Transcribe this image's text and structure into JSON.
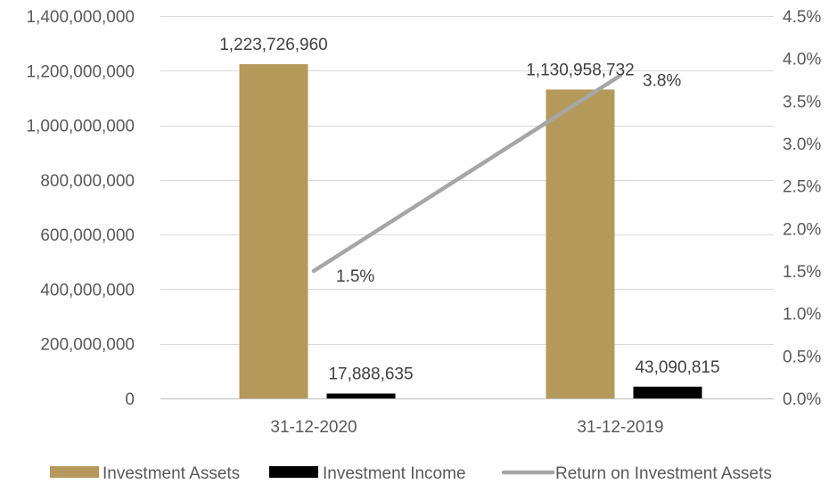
{
  "chart_data": {
    "type": "bar",
    "categories": [
      "31-12-2020",
      "31-12-2019"
    ],
    "series": [
      {
        "name": "Investment Assets",
        "kind": "bar",
        "axis": "left",
        "color": "#b5995a",
        "values": [
          1223726960,
          1130958732
        ],
        "labels": [
          "1,223,726,960",
          "1,130,958,732"
        ]
      },
      {
        "name": "Investment Income",
        "kind": "bar",
        "axis": "left",
        "color": "#000000",
        "values": [
          17888635,
          43090815
        ],
        "labels": [
          "17,888,635",
          "43,090,815"
        ]
      },
      {
        "name": "Return on Investment Assets",
        "kind": "line",
        "axis": "right",
        "color": "#a6a6a6",
        "values": [
          0.015,
          0.038
        ],
        "labels": [
          "1.5%",
          "3.8%"
        ]
      }
    ],
    "y_left": {
      "ylim": [
        0,
        1400000000
      ],
      "ticks": [
        0,
        200000000,
        400000000,
        600000000,
        800000000,
        1000000000,
        1200000000,
        1400000000
      ],
      "tick_labels": [
        "0",
        "200,000,000",
        "400,000,000",
        "600,000,000",
        "800,000,000",
        "1,000,000,000",
        "1,200,000,000",
        "1,400,000,000"
      ]
    },
    "y_right": {
      "ylim": [
        0,
        0.045
      ],
      "ticks": [
        0,
        0.005,
        0.01,
        0.015,
        0.02,
        0.025,
        0.03,
        0.035,
        0.04,
        0.045
      ],
      "tick_labels": [
        "0.0%",
        "0.5%",
        "1.0%",
        "1.5%",
        "2.0%",
        "2.5%",
        "3.0%",
        "3.5%",
        "4.0%",
        "4.5%"
      ]
    },
    "grid": true,
    "legend": "bottom",
    "gridline_color": "#d9d9d9",
    "axis_color": "#bfbfbf"
  }
}
